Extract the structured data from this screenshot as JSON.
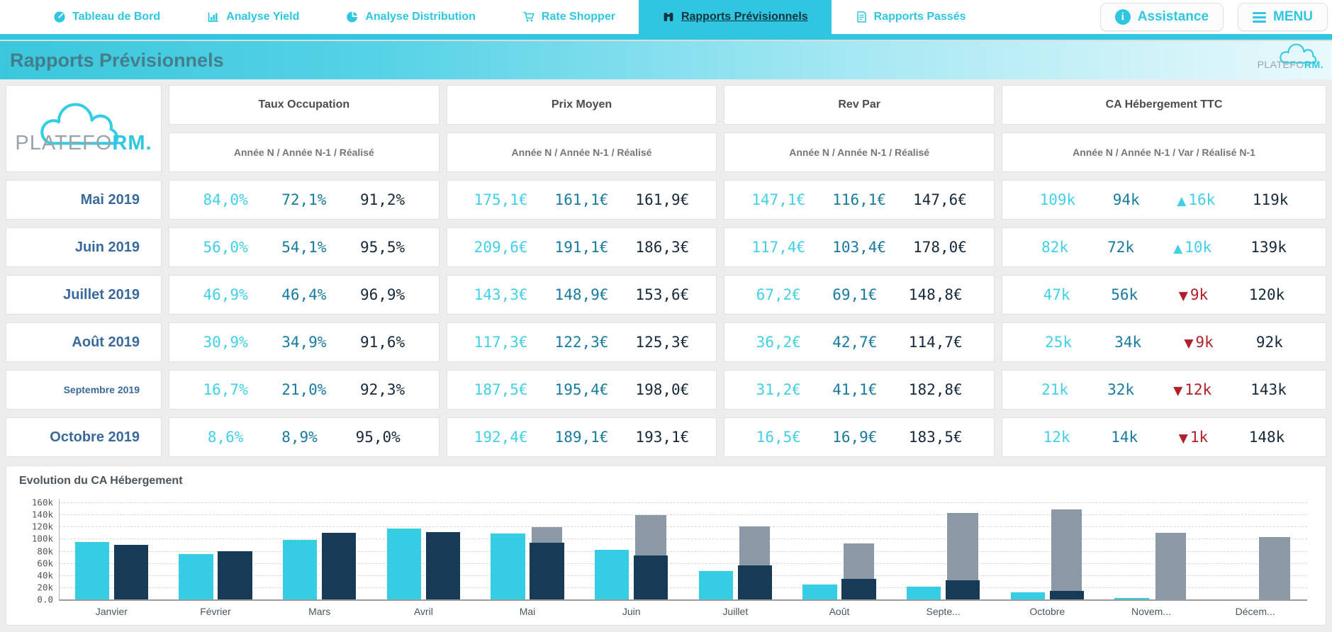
{
  "nav": {
    "items": [
      {
        "label": "Tableau de Bord",
        "icon": "gauge-icon",
        "active": false
      },
      {
        "label": "Analyse Yield",
        "icon": "bar-chart-icon",
        "active": false
      },
      {
        "label": "Analyse Distribution",
        "icon": "pie-chart-icon",
        "active": false
      },
      {
        "label": "Rate Shopper",
        "icon": "cart-icon",
        "active": false
      },
      {
        "label": "Rapports Prévisionnels",
        "icon": "binoculars-icon",
        "active": true
      },
      {
        "label": "Rapports Passés",
        "icon": "report-icon",
        "active": false
      }
    ],
    "assistance_label": "Assistance",
    "menu_label": "MENU"
  },
  "header": {
    "title": "Rapports Prévisionnels",
    "brand": "PLATEFO",
    "brand_accent": "RM."
  },
  "glyphs": {
    "up": "▲",
    "down": "▼"
  },
  "colors": {
    "accent": "#2ec6e0",
    "value_n": "#41d0e8",
    "value_n1": "#177b9f",
    "value_realise": "#16293b",
    "up": "#41d0e8",
    "down": "#b1202a",
    "month_label": "#3a6a9c"
  },
  "table": {
    "groups": [
      {
        "key": "taux",
        "title": "Taux Occupation",
        "subtitle": "Année N / Année N-1 / Réalisé"
      },
      {
        "key": "prix",
        "title": "Prix Moyen",
        "subtitle": "Année N / Année N-1 / Réalisé"
      },
      {
        "key": "revpar",
        "title": "Rev Par",
        "subtitle": "Année N / Année N-1 / Réalisé"
      },
      {
        "key": "ca",
        "title": "CA Hébergement TTC",
        "subtitle": "Année N / Année N-1 / Var / Réalisé N-1"
      }
    ],
    "rows": [
      {
        "month": "Mai 2019",
        "taux": [
          "84,0%",
          "72,1%",
          "91,2%"
        ],
        "prix": [
          "175,1€",
          "161,1€",
          "161,9€"
        ],
        "revpar": [
          "147,1€",
          "116,1€",
          "147,6€"
        ],
        "ca": {
          "n": "109k",
          "n1": "94k",
          "var_dir": "up",
          "var_text": "16k",
          "realise": "119k"
        }
      },
      {
        "month": "Juin 2019",
        "taux": [
          "56,0%",
          "54,1%",
          "95,5%"
        ],
        "prix": [
          "209,6€",
          "191,1€",
          "186,3€"
        ],
        "revpar": [
          "117,4€",
          "103,4€",
          "178,0€"
        ],
        "ca": {
          "n": "82k",
          "n1": "72k",
          "var_dir": "up",
          "var_text": "10k",
          "realise": "139k"
        }
      },
      {
        "month": "Juillet 2019",
        "taux": [
          "46,9%",
          "46,4%",
          "96,9%"
        ],
        "prix": [
          "143,3€",
          "148,9€",
          "153,6€"
        ],
        "revpar": [
          "67,2€",
          "69,1€",
          "148,8€"
        ],
        "ca": {
          "n": "47k",
          "n1": "56k",
          "var_dir": "down",
          "var_text": "9k",
          "realise": "120k"
        }
      },
      {
        "month": "Août 2019",
        "taux": [
          "30,9%",
          "34,9%",
          "91,6%"
        ],
        "prix": [
          "117,3€",
          "122,3€",
          "125,3€"
        ],
        "revpar": [
          "36,2€",
          "42,7€",
          "114,7€"
        ],
        "ca": {
          "n": "25k",
          "n1": "34k",
          "var_dir": "down",
          "var_text": "9k",
          "realise": "92k"
        }
      },
      {
        "month": "Septembre 2019",
        "taux": [
          "16,7%",
          "21,0%",
          "92,3%"
        ],
        "prix": [
          "187,5€",
          "195,4€",
          "198,0€"
        ],
        "revpar": [
          "31,2€",
          "41,1€",
          "182,8€"
        ],
        "ca": {
          "n": "21k",
          "n1": "32k",
          "var_dir": "down",
          "var_text": "12k",
          "realise": "143k"
        }
      },
      {
        "month": "Octobre 2019",
        "taux": [
          "8,6%",
          "8,9%",
          "95,0%"
        ],
        "prix": [
          "192,4€",
          "189,1€",
          "193,1€"
        ],
        "revpar": [
          "16,5€",
          "16,9€",
          "183,5€"
        ],
        "ca": {
          "n": "12k",
          "n1": "14k",
          "var_dir": "down",
          "var_text": "1k",
          "realise": "148k"
        }
      }
    ]
  },
  "chart_data": {
    "type": "bar",
    "title": "Evolution du CA Hébergement",
    "categories": [
      "Janvier",
      "Février",
      "Mars",
      "Avril",
      "Mai",
      "Juin",
      "Juillet",
      "Août",
      "Septe...",
      "Octobre",
      "Novem...",
      "Décem..."
    ],
    "series": [
      {
        "name": "Année N",
        "color": "#35cde4",
        "values": [
          95,
          75,
          98,
          117,
          109,
          82,
          47,
          25,
          21,
          12,
          2,
          0
        ]
      },
      {
        "name": "Année N-1",
        "color": "#173a57",
        "values": [
          90,
          79,
          110,
          111,
          94,
          72,
          56,
          34,
          32,
          14,
          0,
          0
        ]
      },
      {
        "name": "Réalisé N-1",
        "color": "#8b99a6",
        "values": [
          null,
          null,
          null,
          null,
          119,
          139,
          120,
          92,
          143,
          148,
          110,
          103
        ]
      }
    ],
    "unit": "k",
    "ylim": [
      0,
      160
    ],
    "grid": "dashed-horizontal",
    "legend": "none",
    "yticks": [
      {
        "label": "160k",
        "value": 160
      },
      {
        "label": "140k",
        "value": 140
      },
      {
        "label": "120k",
        "value": 120
      },
      {
        "label": "100k",
        "value": 100
      },
      {
        "label": "80k",
        "value": 80
      },
      {
        "label": "60k",
        "value": 60
      },
      {
        "label": "40k",
        "value": 40
      },
      {
        "label": "20k",
        "value": 20
      },
      {
        "label": "0.0",
        "value": 0
      }
    ]
  }
}
